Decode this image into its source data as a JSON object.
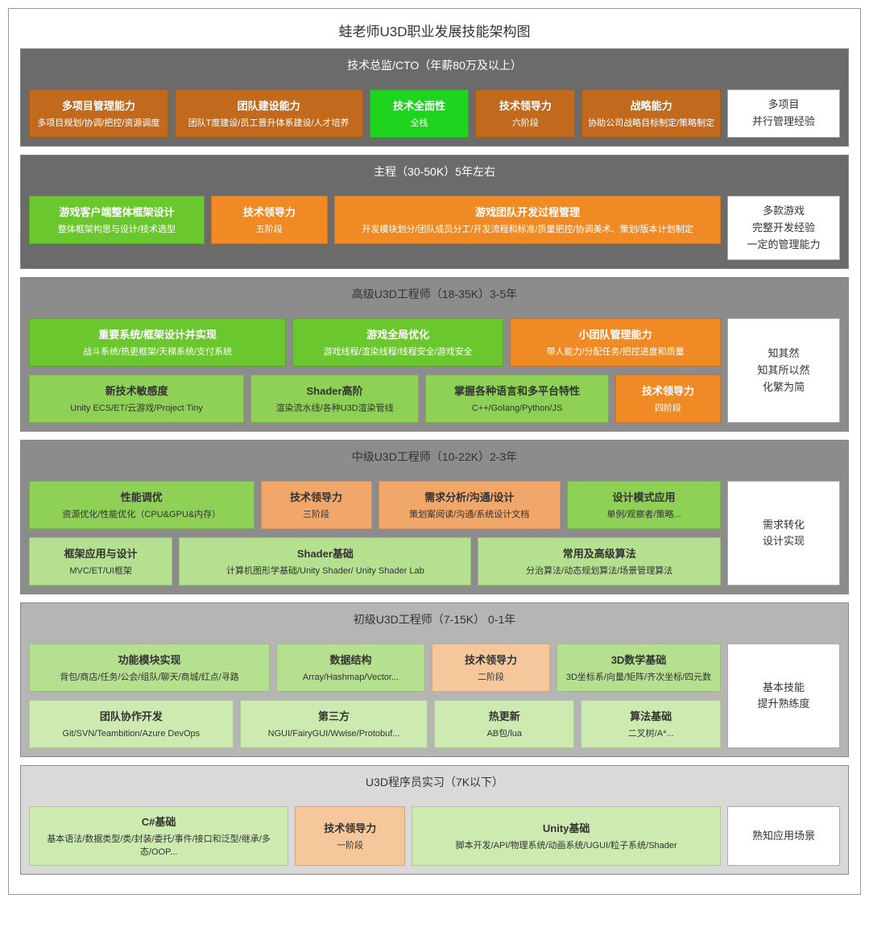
{
  "title": "蛙老师U3D职业发展技能架构图",
  "colors": {
    "brown": "#c16a1e",
    "brown_text": "#ffffff",
    "bright_green": "#1fd41f",
    "orange": "#f08a24",
    "green_mid": "#6bc72e",
    "green_light": "#8ed156",
    "green_pale": "#b5e08f",
    "green_vpale": "#cdeab0",
    "salmon": "#f2a76a",
    "salmon_light": "#f5c79b",
    "white_box": "#ffffff",
    "tier_dark": "#6b6b6b",
    "tier_mid": "#8c8c8c",
    "tier_light": "#b5b5b5",
    "tier_vlight": "#d9d9d9"
  },
  "tiers": [
    {
      "id": "t1",
      "header": "技术总监/CTO（年薪80万及以上）",
      "header_bg": "#6b6b6b",
      "header_color": "#ffffff",
      "right": "多项目\n并行管理经验",
      "rows": [
        [
          {
            "title": "多项目管理能力",
            "sub": "多项目规划/协调/把控/资源调度",
            "bg": "#c16a1e",
            "fg": "#ffffff",
            "flex": 1.3
          },
          {
            "title": "团队建设能力",
            "sub": "团队T度建设/员工晋升体系建设/人才培养",
            "bg": "#c16a1e",
            "fg": "#ffffff",
            "flex": 1.8
          },
          {
            "title": "技术全面性",
            "sub": "全栈",
            "bg": "#1fd41f",
            "fg": "#ffffff",
            "flex": 0.9
          },
          {
            "title": "技术领导力",
            "sub": "六阶段",
            "bg": "#c16a1e",
            "fg": "#ffffff",
            "flex": 0.9
          },
          {
            "title": "战略能力",
            "sub": "协助公司战略目标制定/策略制定",
            "bg": "#c16a1e",
            "fg": "#ffffff",
            "flex": 1.3
          }
        ]
      ]
    },
    {
      "id": "t2",
      "header": "主程（30-50K）5年左右",
      "header_bg": "#6b6b6b",
      "header_color": "#ffffff",
      "right": "多款游戏\n完整开发经验\n一定的管理能力",
      "rows": [
        [
          {
            "title": "游戏客户端整体框架设计",
            "sub": "整体框架构思与设计/技术选型",
            "bg": "#6bc72e",
            "fg": "#ffffff",
            "flex": 1.4
          },
          {
            "title": "技术领导力",
            "sub": "五阶段",
            "bg": "#f08a24",
            "fg": "#ffffff",
            "flex": 0.9
          },
          {
            "title": "游戏团队开发过程管理",
            "sub": "开发模块划分/团队成员分工/开发流程和标准/质量把控/协调美术、策划/版本计划制定",
            "bg": "#f08a24",
            "fg": "#ffffff",
            "flex": 3.2
          }
        ]
      ]
    },
    {
      "id": "t3",
      "header": "高级U3D工程师（18-35K）3-5年",
      "header_bg": "#8c8c8c",
      "header_color": "#333333",
      "right": "知其然\n知其所以然\n化繁为简",
      "rows": [
        [
          {
            "title": "重要系统/框架设计并实现",
            "sub": "战斗系统/热更框架/天梯系统/支付系统",
            "bg": "#6bc72e",
            "fg": "#ffffff",
            "flex": 1.6
          },
          {
            "title": "游戏全局优化",
            "sub": "游戏线程/渲染线程/线程安全/游戏安全",
            "bg": "#6bc72e",
            "fg": "#ffffff",
            "flex": 1.3
          },
          {
            "title": "小团队管理能力",
            "sub": "带人能力/分配任务/把控进度和质量",
            "bg": "#f08a24",
            "fg": "#ffffff",
            "flex": 1.3
          }
        ],
        [
          {
            "title": "新技术敏感度",
            "sub": "Unity ECS/ET/云游戏/Project Tiny",
            "bg": "#8ed156",
            "fg": "#333333",
            "flex": 1.3
          },
          {
            "title": "Shader高阶",
            "sub": "渲染流水线/各种U3D渲染管线",
            "bg": "#8ed156",
            "fg": "#333333",
            "flex": 1.0
          },
          {
            "title": "掌握各种语言和多平台特性",
            "sub": "C++/Golang/Python/JS",
            "bg": "#8ed156",
            "fg": "#333333",
            "flex": 1.1
          },
          {
            "title": "技术领导力",
            "sub": "四阶段",
            "bg": "#f08a24",
            "fg": "#ffffff",
            "flex": 0.6
          }
        ]
      ]
    },
    {
      "id": "t4",
      "header": "中级U3D工程师（10-22K）2-3年",
      "header_bg": "#8c8c8c",
      "header_color": "#333333",
      "right": "需求转化\n设计实现",
      "rows": [
        [
          {
            "title": "性能调优",
            "sub": "资源优化/性能优化（CPU&GPU&内存）",
            "bg": "#8ed156",
            "fg": "#333333",
            "flex": 1.5
          },
          {
            "title": "技术领导力",
            "sub": "三阶段",
            "bg": "#f2a76a",
            "fg": "#333333",
            "flex": 0.7
          },
          {
            "title": "需求分析/沟通/设计",
            "sub": "策划案阅读/沟通/系统设计文档",
            "bg": "#f2a76a",
            "fg": "#333333",
            "flex": 1.2
          },
          {
            "title": "设计模式应用",
            "sub": "单例/观察者/策略...",
            "bg": "#8ed156",
            "fg": "#333333",
            "flex": 1.0
          }
        ],
        [
          {
            "title": "框架应用与设计",
            "sub": "MVC/ET/UI框架",
            "bg": "#b5e08f",
            "fg": "#333333",
            "flex": 0.8
          },
          {
            "title": "Shader基础",
            "sub": "计算机图形学基础/Unity Shader/ Unity Shader Lab",
            "bg": "#b5e08f",
            "fg": "#333333",
            "flex": 1.7
          },
          {
            "title": "常用及高级算法",
            "sub": "分治算法/动态规划算法/场景管理算法",
            "bg": "#b5e08f",
            "fg": "#333333",
            "flex": 1.4
          }
        ]
      ]
    },
    {
      "id": "t5",
      "header": "初级U3D工程师（7-15K） 0-1年",
      "header_bg": "#b5b5b5",
      "header_color": "#333333",
      "right": "基本技能\n提升熟练度",
      "rows": [
        [
          {
            "title": "功能模块实现",
            "sub": "背包/商店/任务/公会/组队/聊天/商城/红点/寻路",
            "bg": "#b5e08f",
            "fg": "#333333",
            "flex": 1.5
          },
          {
            "title": "数据结构",
            "sub": "Array/Hashmap/Vector...",
            "bg": "#b5e08f",
            "fg": "#333333",
            "flex": 0.9
          },
          {
            "title": "技术领导力",
            "sub": "二阶段",
            "bg": "#f5c79b",
            "fg": "#333333",
            "flex": 0.7
          },
          {
            "title": "3D数学基础",
            "sub": "3D坐标系/向量/矩阵/齐次坐标/四元数",
            "bg": "#b5e08f",
            "fg": "#333333",
            "flex": 1.0
          }
        ],
        [
          {
            "title": "团队协作开发",
            "sub": "Git/SVN/Teambition/Azure DevOps",
            "bg": "#cdeab0",
            "fg": "#333333",
            "flex": 1.2
          },
          {
            "title": "第三方",
            "sub": "NGUI/FairyGUI/Wwise/Protobuf...",
            "bg": "#cdeab0",
            "fg": "#333333",
            "flex": 1.1
          },
          {
            "title": "热更新",
            "sub": "AB包/lua",
            "bg": "#cdeab0",
            "fg": "#333333",
            "flex": 0.8
          },
          {
            "title": "算法基础",
            "sub": "二叉树/A*...",
            "bg": "#cdeab0",
            "fg": "#333333",
            "flex": 0.8
          }
        ]
      ]
    },
    {
      "id": "t6",
      "header": "U3D程序员实习（7K以下）",
      "header_bg": "#d9d9d9",
      "header_color": "#333333",
      "right": "熟知应用场景",
      "rows": [
        [
          {
            "title": "C#基础",
            "sub": "基本语法/数据类型/类/封装/委托/事件/接口和泛型/继承/多态/OOP...",
            "bg": "#cdeab0",
            "fg": "#333333",
            "flex": 1.5
          },
          {
            "title": "技术领导力",
            "sub": "一阶段",
            "bg": "#f5c79b",
            "fg": "#333333",
            "flex": 0.6
          },
          {
            "title": "Unity基础",
            "sub": "脚本开发/API/物理系统/动画系统/UGUI/粒子系统/Shader",
            "bg": "#cdeab0",
            "fg": "#333333",
            "flex": 1.8
          }
        ]
      ]
    }
  ]
}
